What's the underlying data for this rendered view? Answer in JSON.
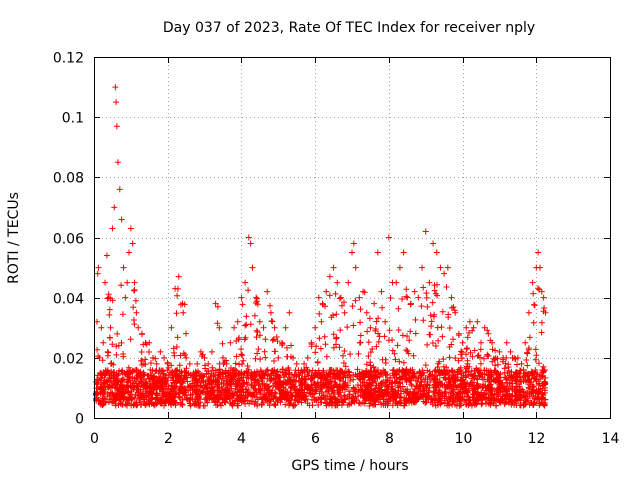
{
  "chart_data": {
    "type": "scatter",
    "title": "Day 037 of 2023, Rate Of TEC Index for receiver nply",
    "xlabel": "GPS time / hours",
    "ylabel": "ROTI / TECUs",
    "xlim": [
      0,
      14
    ],
    "ylim": [
      0,
      0.12
    ],
    "x_ticks": [
      "0",
      "2",
      "4",
      "6",
      "8",
      "10",
      "12",
      "14"
    ],
    "x_tick_values": [
      0,
      2,
      4,
      6,
      8,
      10,
      12,
      14
    ],
    "y_ticks": [
      "0",
      "0.02",
      "0.04",
      "0.06",
      "0.08",
      "0.1",
      "0.12"
    ],
    "y_tick_values": [
      0,
      0.02,
      0.04,
      0.06,
      0.08,
      0.1,
      0.12
    ],
    "grid": true,
    "marker": "plus",
    "series_color": "#ff0000",
    "series": [
      {
        "name": "ROTI",
        "x": [
          0.05,
          0.08,
          0.1,
          0.12,
          0.15,
          0.18,
          0.2,
          0.25,
          0.3,
          0.35,
          0.4,
          0.45,
          0.5,
          0.55,
          0.58,
          0.6,
          0.62,
          0.65,
          0.7,
          0.75,
          0.8,
          0.85,
          0.9,
          0.95,
          1.0,
          1.05,
          1.1,
          1.15,
          1.2,
          1.3,
          1.4,
          1.5,
          1.6,
          1.7,
          1.8,
          1.9,
          2.0,
          2.1,
          2.2,
          2.3,
          2.4,
          2.5,
          2.6,
          2.7,
          2.8,
          2.9,
          3.0,
          3.1,
          3.2,
          3.3,
          3.4,
          3.5,
          3.6,
          3.7,
          3.8,
          3.9,
          4.0,
          4.1,
          4.2,
          4.25,
          4.3,
          4.4,
          4.5,
          4.6,
          4.7,
          4.8,
          4.9,
          5.0,
          5.1,
          5.2,
          5.3,
          5.4,
          5.5,
          5.6,
          5.7,
          5.8,
          5.9,
          6.0,
          6.1,
          6.2,
          6.3,
          6.4,
          6.5,
          6.6,
          6.7,
          6.8,
          6.9,
          7.0,
          7.05,
          7.1,
          7.2,
          7.3,
          7.4,
          7.5,
          7.6,
          7.7,
          7.8,
          7.9,
          8.0,
          8.1,
          8.2,
          8.3,
          8.4,
          8.5,
          8.6,
          8.7,
          8.8,
          8.9,
          9.0,
          9.1,
          9.2,
          9.3,
          9.4,
          9.5,
          9.6,
          9.7,
          9.8,
          9.9,
          10.0,
          10.1,
          10.2,
          10.3,
          10.4,
          10.5,
          10.6,
          10.7,
          10.8,
          10.9,
          11.0,
          11.1,
          11.2,
          11.3,
          11.4,
          11.5,
          11.6,
          11.7,
          11.8,
          11.9,
          12.0,
          12.05,
          12.1,
          12.15,
          12.2,
          12.25
        ],
        "y": [
          0.012,
          0.032,
          0.048,
          0.05,
          0.02,
          0.015,
          0.03,
          0.025,
          0.045,
          0.054,
          0.04,
          0.03,
          0.063,
          0.07,
          0.11,
          0.105,
          0.097,
          0.085,
          0.076,
          0.066,
          0.05,
          0.04,
          0.045,
          0.055,
          0.063,
          0.058,
          0.045,
          0.035,
          0.03,
          0.028,
          0.025,
          0.025,
          0.02,
          0.018,
          0.022,
          0.02,
          0.018,
          0.03,
          0.043,
          0.047,
          0.038,
          0.02,
          0.018,
          0.015,
          0.018,
          0.022,
          0.02,
          0.018,
          0.022,
          0.038,
          0.03,
          0.02,
          0.018,
          0.025,
          0.03,
          0.032,
          0.04,
          0.045,
          0.06,
          0.058,
          0.05,
          0.04,
          0.032,
          0.03,
          0.042,
          0.035,
          0.03,
          0.02,
          0.025,
          0.03,
          0.035,
          0.02,
          0.018,
          0.015,
          0.018,
          0.02,
          0.025,
          0.03,
          0.04,
          0.038,
          0.042,
          0.047,
          0.05,
          0.045,
          0.04,
          0.035,
          0.045,
          0.055,
          0.058,
          0.05,
          0.04,
          0.042,
          0.035,
          0.03,
          0.038,
          0.055,
          0.042,
          0.032,
          0.06,
          0.045,
          0.045,
          0.05,
          0.055,
          0.04,
          0.038,
          0.042,
          0.04,
          0.05,
          0.062,
          0.045,
          0.058,
          0.055,
          0.05,
          0.048,
          0.05,
          0.04,
          0.035,
          0.028,
          0.025,
          0.03,
          0.032,
          0.03,
          0.032,
          0.025,
          0.03,
          0.028,
          0.025,
          0.02,
          0.022,
          0.02,
          0.025,
          0.022,
          0.02,
          0.02,
          0.018,
          0.025,
          0.035,
          0.045,
          0.05,
          0.055,
          0.05,
          0.042,
          0.04,
          0.035
        ]
      }
    ]
  }
}
